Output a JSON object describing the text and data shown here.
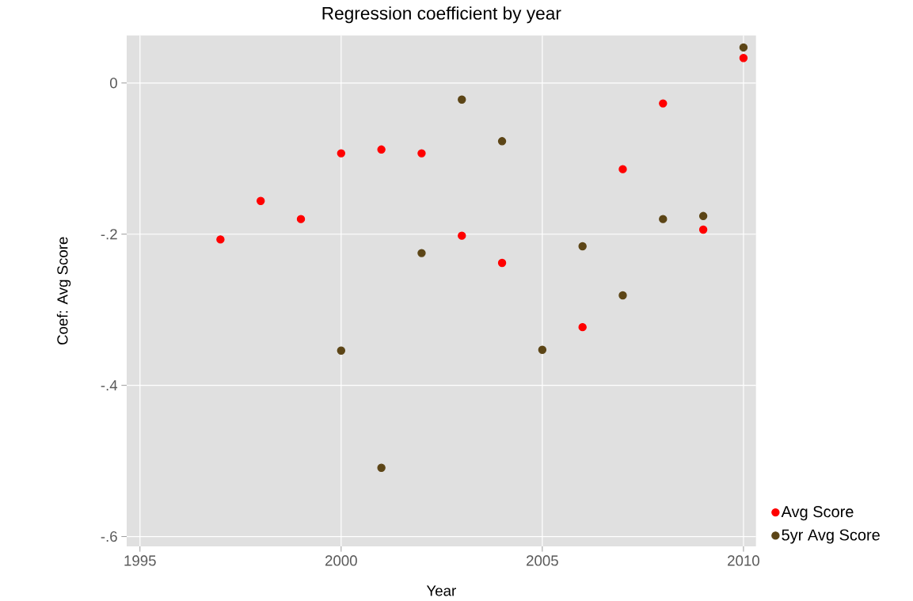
{
  "chart_data": {
    "type": "scatter",
    "title": "Regression coefficient by year",
    "xlabel": "Year",
    "ylabel": "Coef: Avg Score",
    "xlim": [
      1994.67,
      2010.31
    ],
    "ylim": [
      -0.613,
      0.063
    ],
    "xticks": [
      1995,
      2000,
      2005,
      2010
    ],
    "yticks": [
      0,
      {
        "value": -0.2,
        "label": "-.2"
      },
      {
        "value": -0.4,
        "label": "-.4"
      },
      {
        "value": -0.6,
        "label": "-.6"
      }
    ],
    "grid": true,
    "legend": "bottom right",
    "series": [
      {
        "name": "Avg Score",
        "color": "#ff0000",
        "x": [
          1997,
          1998,
          1999,
          2000,
          2001,
          2002,
          2003,
          2004,
          2006,
          2007,
          2008,
          2009,
          2010
        ],
        "values": [
          -0.207,
          -0.156,
          -0.18,
          -0.093,
          -0.088,
          -0.093,
          -0.202,
          -0.238,
          -0.323,
          -0.114,
          -0.027,
          -0.194,
          0.033
        ]
      },
      {
        "name": "5yr Avg Score",
        "color": "#5c4516",
        "x": [
          2000,
          2001,
          2002,
          2003,
          2004,
          2005,
          2006,
          2007,
          2008,
          2009,
          2010
        ],
        "values": [
          -0.354,
          -0.509,
          -0.225,
          -0.022,
          -0.077,
          -0.353,
          -0.216,
          -0.281,
          -0.18,
          -0.176,
          0.047
        ]
      }
    ]
  }
}
